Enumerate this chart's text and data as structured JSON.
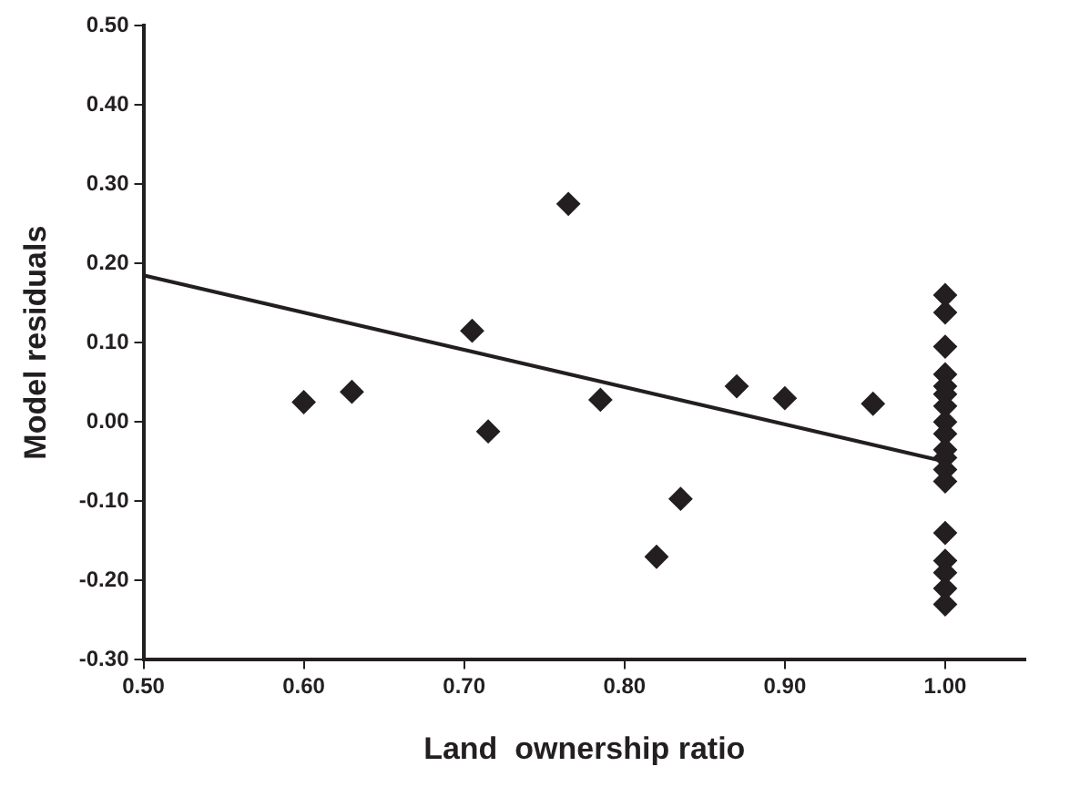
{
  "chart_data": {
    "type": "scatter",
    "xlabel": "Land  ownership ratio",
    "ylabel": "Model residuals",
    "grid": false,
    "legend": false,
    "xlim": [
      0.5,
      1.05
    ],
    "xticks": [
      {
        "value": 0.5,
        "label": "0.50"
      },
      {
        "value": 0.6,
        "label": "0.60"
      },
      {
        "value": 0.7,
        "label": "0.70"
      },
      {
        "value": 0.8,
        "label": "0.80"
      },
      {
        "value": 0.9,
        "label": "0.90"
      },
      {
        "value": 1.0,
        "label": "1.00"
      }
    ],
    "ylim": [
      -0.3,
      0.5
    ],
    "yticks": [
      {
        "value": -0.3,
        "label": "-0.30"
      },
      {
        "value": -0.2,
        "label": "-0.20"
      },
      {
        "value": -0.1,
        "label": "-0.10"
      },
      {
        "value": 0,
        "label": "0.00"
      },
      {
        "value": 0.1,
        "label": "0.10"
      },
      {
        "value": 0.2,
        "label": "0.20"
      },
      {
        "value": 0.3,
        "label": "0.30"
      },
      {
        "value": 0.4,
        "label": "0.40"
      },
      {
        "value": 0.5,
        "label": "0.50"
      }
    ],
    "series": [
      {
        "marker": "diamond",
        "color": "#231f20",
        "x": [
          0.6,
          0.63,
          0.705,
          0.715,
          0.765,
          0.785,
          0.82,
          0.835,
          0.87,
          0.9,
          0.955,
          1,
          1,
          1,
          1,
          1,
          1,
          1,
          1,
          1,
          1,
          1,
          1,
          1,
          1,
          1,
          1,
          1,
          1
        ],
        "values": [
          0.025,
          0.038,
          0.115,
          -0.012,
          0.275,
          0.028,
          -0.17,
          -0.097,
          0.045,
          0.03,
          0.023,
          0.16,
          0.138,
          0.095,
          0.06,
          0.045,
          0.035,
          0.02,
          0.0,
          -0.015,
          -0.035,
          -0.045,
          -0.06,
          -0.075,
          -0.14,
          -0.175,
          -0.19,
          -0.21,
          -0.23
        ]
      },
      {
        "type": "line",
        "marker": "none",
        "color": "#231f20",
        "x": [
          0.5,
          1.0
        ],
        "values": [
          0.185,
          -0.05
        ]
      }
    ]
  }
}
